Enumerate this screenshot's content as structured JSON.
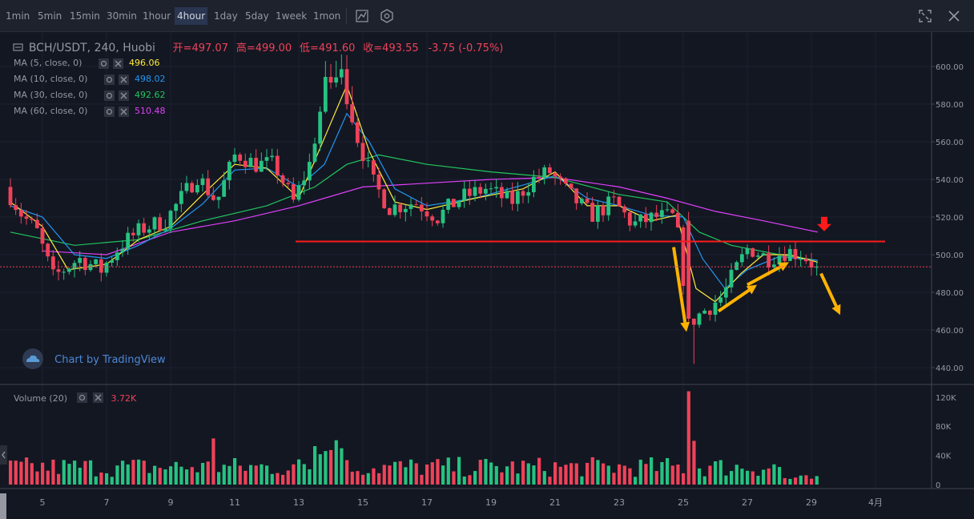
{
  "toolbar": {
    "timeframes": [
      "1min",
      "5min",
      "15min",
      "30min",
      "1hour",
      "4hour",
      "1day",
      "5day",
      "1week",
      "1mon"
    ],
    "active": "4hour",
    "icons": [
      "indicators-icon",
      "settings-icon",
      "fullscreen-icon",
      "close-icon"
    ]
  },
  "legend": {
    "symbol": "BCH/USDT, 240, Huobi",
    "open": "开=497.07",
    "high": "高=499.00",
    "low": "低=491.60",
    "close": "收=493.55",
    "change": "-3.75 (-0.75%)"
  },
  "ma_rows": [
    {
      "label": "MA (5, close, 0)",
      "value": "496.06",
      "color": "#ffeb3b"
    },
    {
      "label": "MA (10, close, 0)",
      "value": "498.02",
      "color": "#2196f3"
    },
    {
      "label": "MA (30, close, 0)",
      "value": "492.62",
      "color": "#21c55d"
    },
    {
      "label": "MA (60, close, 0)",
      "value": "510.48",
      "color": "#e040fb"
    }
  ],
  "volume_legend": {
    "label": "Volume (20)",
    "value": "3.72K"
  },
  "watermark": "Chart by TradingView",
  "colors": {
    "up": "#26c281",
    "down": "#ef4259",
    "support": "#ff1a1a",
    "arrow_up": "#ffb300",
    "arrow_down": "#ff1a1a"
  },
  "chart_data": {
    "type": "candlestick",
    "x_ticks": [
      "5",
      "7",
      "9",
      "11",
      "13",
      "15",
      "17",
      "19",
      "21",
      "23",
      "25",
      "27",
      "29",
      "4月"
    ],
    "y_ticks": [
      "440.00",
      "460.00",
      "480.00",
      "500.00",
      "520.00",
      "540.00",
      "560.00",
      "580.00",
      "600.00"
    ],
    "ylim": [
      432,
      612
    ],
    "last_price": "493.55",
    "support_level": 507,
    "volume_ticks": [
      "0",
      "40K",
      "80K",
      "120K"
    ],
    "volume_max": 135,
    "key_points": [
      {
        "day": 4.0,
        "price": 536
      },
      {
        "day": 4.5,
        "price": 522
      },
      {
        "day": 5.0,
        "price": 512
      },
      {
        "day": 5.5,
        "price": 488
      },
      {
        "day": 6.3,
        "price": 498
      },
      {
        "day": 7.0,
        "price": 492
      },
      {
        "day": 7.6,
        "price": 505
      },
      {
        "day": 8.3,
        "price": 514
      },
      {
        "day": 9.0,
        "price": 518
      },
      {
        "day": 9.5,
        "price": 530
      },
      {
        "day": 10.0,
        "price": 542
      },
      {
        "day": 10.6,
        "price": 528
      },
      {
        "day": 11.2,
        "price": 554
      },
      {
        "day": 11.8,
        "price": 548
      },
      {
        "day": 12.4,
        "price": 548
      },
      {
        "day": 13.0,
        "price": 528
      },
      {
        "day": 13.5,
        "price": 548
      },
      {
        "day": 14.0,
        "price": 590
      },
      {
        "day": 14.5,
        "price": 596
      },
      {
        "day": 15.0,
        "price": 562
      },
      {
        "day": 15.5,
        "price": 538
      },
      {
        "day": 16.0,
        "price": 525
      },
      {
        "day": 16.8,
        "price": 528
      },
      {
        "day": 17.5,
        "price": 520
      },
      {
        "day": 18.2,
        "price": 530
      },
      {
        "day": 19.0,
        "price": 535
      },
      {
        "day": 19.8,
        "price": 528
      },
      {
        "day": 20.5,
        "price": 540
      },
      {
        "day": 21.0,
        "price": 544
      },
      {
        "day": 21.6,
        "price": 532
      },
      {
        "day": 22.3,
        "price": 521
      },
      {
        "day": 23.0,
        "price": 528
      },
      {
        "day": 23.6,
        "price": 516
      },
      {
        "day": 24.3,
        "price": 520
      },
      {
        "day": 24.9,
        "price": 520
      },
      {
        "day": 25.1,
        "price": 500
      },
      {
        "day": 25.3,
        "price": 463
      },
      {
        "day": 25.8,
        "price": 470
      },
      {
        "day": 26.4,
        "price": 478
      },
      {
        "day": 26.8,
        "price": 492
      },
      {
        "day": 27.2,
        "price": 504
      },
      {
        "day": 27.8,
        "price": 498
      },
      {
        "day": 28.4,
        "price": 502
      },
      {
        "day": 28.9,
        "price": 500
      },
      {
        "day": 29.3,
        "price": 493.5
      }
    ],
    "ma_series": [
      {
        "name": "MA (60, close, 0)",
        "points": [
          [
            5,
            502
          ],
          [
            7,
            500
          ],
          [
            9,
            512
          ],
          [
            11,
            518
          ],
          [
            13,
            526
          ],
          [
            15,
            536
          ],
          [
            17,
            538
          ],
          [
            19,
            540
          ],
          [
            21,
            541
          ],
          [
            23,
            536
          ],
          [
            24.5,
            530
          ],
          [
            26,
            523
          ],
          [
            27.5,
            518
          ],
          [
            29.2,
            512
          ]
        ]
      },
      {
        "name": "MA (30, close, 0)",
        "points": [
          [
            4,
            512
          ],
          [
            6,
            505
          ],
          [
            8,
            508
          ],
          [
            10,
            518
          ],
          [
            12,
            526
          ],
          [
            13.5,
            536
          ],
          [
            14.5,
            548
          ],
          [
            15.5,
            553
          ],
          [
            17,
            548
          ],
          [
            19,
            544
          ],
          [
            21,
            541
          ],
          [
            23,
            532
          ],
          [
            24.5,
            528
          ],
          [
            25.5,
            512
          ],
          [
            26.5,
            505
          ],
          [
            28,
            500
          ],
          [
            29.2,
            497
          ]
        ]
      },
      {
        "name": "MA (10, close, 0)",
        "points": [
          [
            4,
            526
          ],
          [
            5,
            520
          ],
          [
            6,
            500
          ],
          [
            7,
            498
          ],
          [
            8,
            505
          ],
          [
            9,
            514
          ],
          [
            10,
            527
          ],
          [
            11,
            545
          ],
          [
            12,
            546
          ],
          [
            13,
            536
          ],
          [
            13.8,
            548
          ],
          [
            14.5,
            575
          ],
          [
            15.2,
            560
          ],
          [
            16,
            535
          ],
          [
            17,
            526
          ],
          [
            18.5,
            530
          ],
          [
            20,
            537
          ],
          [
            21,
            542
          ],
          [
            22,
            530
          ],
          [
            23,
            526
          ],
          [
            24,
            521
          ],
          [
            25,
            520
          ],
          [
            25.6,
            498
          ],
          [
            26.3,
            482
          ],
          [
            27,
            492
          ],
          [
            28,
            499
          ],
          [
            29.2,
            497
          ]
        ]
      },
      {
        "name": "MA (5, close, 0)",
        "points": [
          [
            4,
            528
          ],
          [
            5,
            515
          ],
          [
            5.8,
            492
          ],
          [
            7,
            495
          ],
          [
            8,
            508
          ],
          [
            9,
            515
          ],
          [
            10,
            532
          ],
          [
            11,
            548
          ],
          [
            12,
            546
          ],
          [
            13,
            530
          ],
          [
            13.8,
            562
          ],
          [
            14.5,
            590
          ],
          [
            15.2,
            555
          ],
          [
            16,
            528
          ],
          [
            17,
            524
          ],
          [
            18.5,
            530
          ],
          [
            20,
            535
          ],
          [
            21,
            544
          ],
          [
            22,
            526
          ],
          [
            23,
            526
          ],
          [
            24,
            518
          ],
          [
            24.8,
            521
          ],
          [
            25.4,
            482
          ],
          [
            26,
            475
          ],
          [
            26.8,
            490
          ],
          [
            27.5,
            500
          ],
          [
            28.3,
            500
          ],
          [
            29.2,
            496
          ]
        ]
      }
    ],
    "annotations": [
      {
        "type": "horizontal-line",
        "price": 507,
        "from_day": 12.9,
        "to_day": 31.3
      },
      {
        "type": "arrow",
        "direction": "down",
        "color": "arrow_down",
        "at_day": 29.4,
        "price": 515
      },
      {
        "type": "arrow",
        "color": "arrow_up",
        "from": [
          24.7,
          504
        ],
        "to": [
          25.1,
          459
        ]
      },
      {
        "type": "arrow",
        "color": "arrow_up",
        "from": [
          26.1,
          470
        ],
        "to": [
          27.3,
          484
        ]
      },
      {
        "type": "arrow",
        "color": "arrow_up",
        "from": [
          27.0,
          484
        ],
        "to": [
          28.3,
          496
        ]
      },
      {
        "type": "arrow",
        "color": "arrow_up",
        "from": [
          29.3,
          490
        ],
        "to": [
          29.9,
          468
        ]
      }
    ]
  }
}
